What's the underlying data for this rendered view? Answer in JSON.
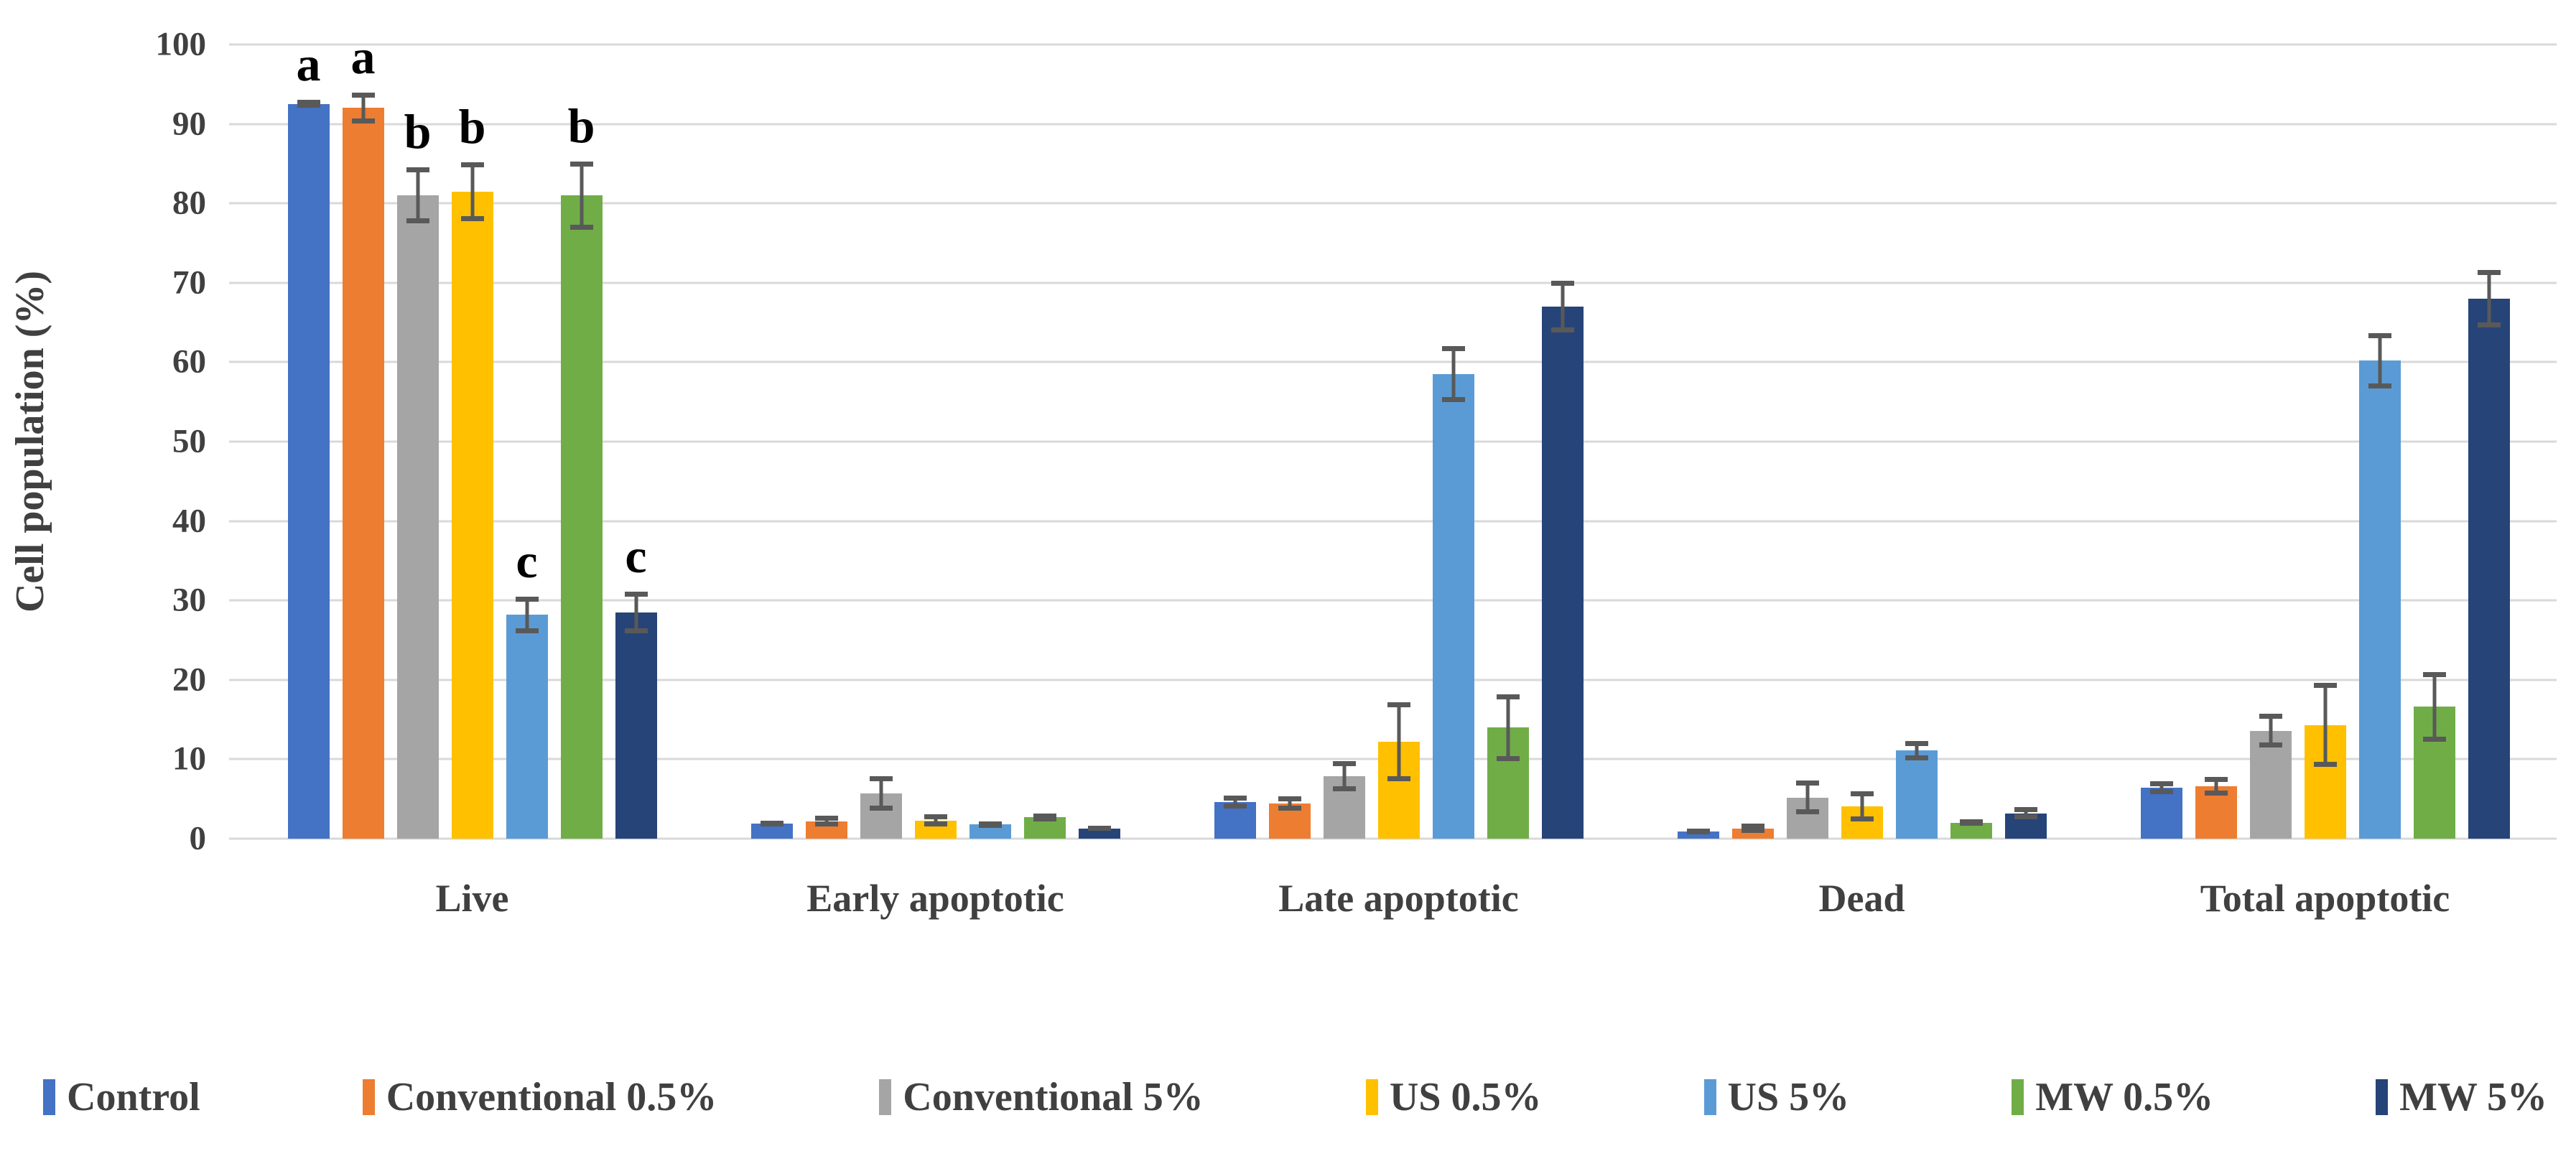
{
  "chart_data": {
    "type": "bar",
    "title": "",
    "y_axis_title": "Cell population (%)",
    "xlabel": "",
    "ylabel": "Cell population (%)",
    "ylim": [
      0,
      100
    ],
    "y_ticks": [
      0,
      10,
      20,
      30,
      40,
      50,
      60,
      70,
      80,
      90,
      100
    ],
    "grid": true,
    "legend_position": "bottom",
    "categories": [
      "Live",
      "Early apoptotic",
      "Late apoptotic",
      "Dead",
      "Total apoptotic"
    ],
    "series": [
      {
        "name": "Control",
        "color": "#4472C4",
        "values": [
          92.5,
          1.9,
          4.6,
          0.9,
          6.4
        ],
        "errors": [
          0.5,
          0.3,
          0.8,
          0.3,
          0.8
        ]
      },
      {
        "name": "Conventional 0.5%",
        "color": "#ED7D31",
        "values": [
          92.0,
          2.2,
          4.4,
          1.3,
          6.6
        ],
        "errors": [
          1.9,
          0.7,
          0.9,
          0.6,
          1.2
        ]
      },
      {
        "name": "Conventional 5%",
        "color": "#A5A5A5",
        "values": [
          81.0,
          5.7,
          7.9,
          5.2,
          13.6
        ],
        "errors": [
          3.5,
          2.2,
          1.9,
          2.1,
          2.1
        ]
      },
      {
        "name": "US 0.5%",
        "color": "#FFC000",
        "values": [
          81.5,
          2.3,
          12.2,
          4.1,
          14.3
        ],
        "errors": [
          3.7,
          0.8,
          5.0,
          1.9,
          5.3
        ]
      },
      {
        "name": "US 5%",
        "color": "#5B9BD5",
        "values": [
          28.2,
          1.8,
          58.5,
          11.1,
          60.2
        ],
        "errors": [
          2.3,
          0.4,
          3.5,
          1.2,
          3.5
        ]
      },
      {
        "name": "MW 0.5%",
        "color": "#70AD47",
        "values": [
          81.0,
          2.7,
          14.0,
          2.0,
          16.6
        ],
        "errors": [
          4.3,
          0.5,
          4.2,
          0.4,
          4.4
        ]
      },
      {
        "name": "MW 5%",
        "color": "#264478",
        "values": [
          28.5,
          1.3,
          67.0,
          3.2,
          68.0
        ],
        "errors": [
          2.6,
          0.3,
          3.3,
          0.8,
          3.6
        ]
      }
    ],
    "significance_letters": {
      "category": "Live",
      "per_series": [
        "a",
        "a",
        "b",
        "b",
        "c",
        "b",
        "c"
      ]
    },
    "style_colors": {
      "gridline": "#D9D9D9",
      "error_bar": "#595959",
      "axis_text": "#404040",
      "letter": "#000000",
      "background": "#FFFFFF"
    }
  }
}
